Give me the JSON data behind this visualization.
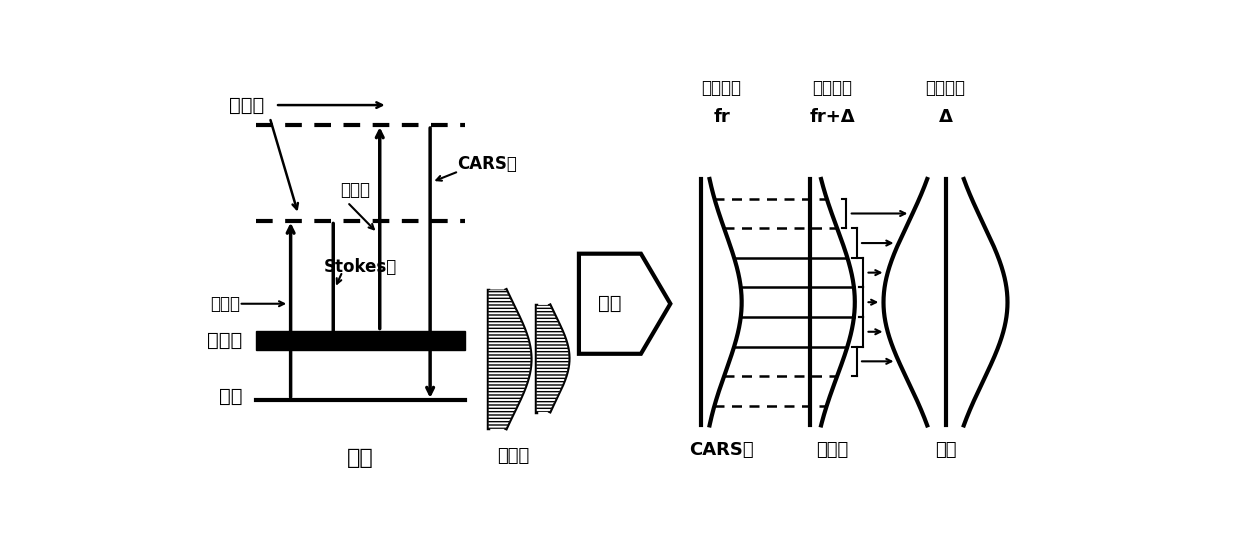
{
  "bg_color": "#ffffff",
  "text_color": "#000000",
  "labels": {
    "xu_neng_tai": "虚能态",
    "zhen_dong_tai": "振动态",
    "ji_tai": "基态",
    "yang_pin": "样品",
    "beng_pu_guang": "泵浦光",
    "tan_ce_guang": "探测光",
    "stokes_guang": "Stokes光",
    "cars_guang_left": "CARS光",
    "can_kao_guang_left": "参考光",
    "pin_lv_jian_ge": "频率间隔",
    "fr": "fr",
    "fr_delta": "fr+Δ",
    "delta": "Δ",
    "pai_pin": "拍频",
    "cars_guang_right": "CARS光",
    "can_kao_guang_right": "参考光",
    "pai_pin_right": "拍频"
  }
}
